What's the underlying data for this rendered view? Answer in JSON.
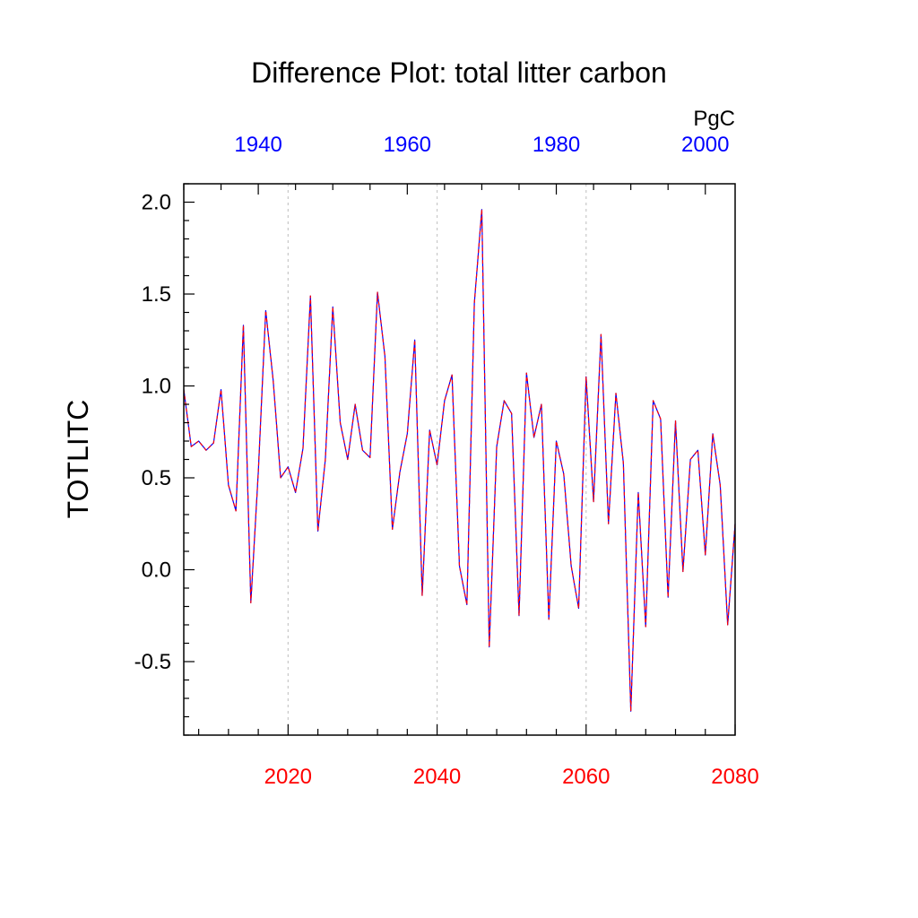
{
  "chart_data": {
    "type": "line",
    "title": "Difference Plot: total litter carbon",
    "units": "PgC",
    "ylabel": "TOTLITC",
    "ylim": [
      -0.9,
      2.1
    ],
    "yticks": [
      -0.5,
      0.0,
      0.5,
      1.0,
      1.5,
      2.0
    ],
    "ytick_labels": [
      "-0.5",
      "0.0",
      "0.5",
      "1.0",
      "1.5",
      "2.0"
    ],
    "bottom_axis": {
      "color": "#ff0000",
      "range": [
        2006,
        2080
      ],
      "ticks": [
        2020,
        2040,
        2060,
        2080
      ],
      "tick_labels": [
        "2020",
        "2040",
        "2060",
        "2080"
      ]
    },
    "top_axis": {
      "color": "#0000ff",
      "range": [
        1930,
        2004
      ],
      "ticks": [
        1940,
        1960,
        1980,
        2000
      ],
      "tick_labels": [
        "1940",
        "1960",
        "1980",
        "2000"
      ]
    },
    "grid": "vertical dashed at major ticks",
    "series": [
      {
        "color": "#0000ff",
        "style": "solid",
        "x": [
          2006,
          2007,
          2008,
          2009,
          2010,
          2011,
          2012,
          2013,
          2014,
          2015,
          2016,
          2017,
          2018,
          2019,
          2020,
          2021,
          2022,
          2023,
          2024,
          2025,
          2026,
          2027,
          2028,
          2029,
          2030,
          2031,
          2032,
          2033,
          2034,
          2035,
          2036,
          2037,
          2038,
          2039,
          2040,
          2041,
          2042,
          2043,
          2044,
          2045,
          2046,
          2047,
          2048,
          2049,
          2050,
          2051,
          2052,
          2053,
          2054,
          2055,
          2056,
          2057,
          2058,
          2059,
          2060,
          2061,
          2062,
          2063,
          2064,
          2065,
          2066,
          2067,
          2068,
          2069,
          2070,
          2071,
          2072,
          2073,
          2074,
          2075,
          2076,
          2077,
          2078,
          2079,
          2080
        ],
        "values": [
          0.98,
          0.67,
          0.7,
          0.65,
          0.69,
          0.98,
          0.46,
          0.32,
          1.33,
          -0.18,
          0.53,
          1.41,
          1.03,
          0.5,
          0.56,
          0.42,
          0.66,
          1.49,
          0.21,
          0.6,
          1.43,
          0.8,
          0.6,
          0.9,
          0.65,
          0.61,
          1.51,
          1.16,
          0.22,
          0.53,
          0.74,
          1.25,
          -0.14,
          0.76,
          0.57,
          0.92,
          1.06,
          0.02,
          -0.19,
          1.45,
          1.96,
          -0.42,
          0.67,
          0.92,
          0.85,
          -0.25,
          1.07,
          0.72,
          0.9,
          -0.27,
          0.7,
          0.52,
          0.02,
          -0.21,
          1.05,
          0.37,
          1.28,
          0.25,
          0.96,
          0.58,
          -0.77,
          0.42,
          -0.31,
          0.92,
          0.82,
          -0.15,
          0.81,
          -0.01,
          0.6,
          0.65,
          0.08,
          0.74,
          0.46,
          -0.3,
          0.25
        ]
      },
      {
        "color": "#ff0000",
        "style": "dashed",
        "x": [
          2006,
          2007,
          2008,
          2009,
          2010,
          2011,
          2012,
          2013,
          2014,
          2015,
          2016,
          2017,
          2018,
          2019,
          2020,
          2021,
          2022,
          2023,
          2024,
          2025,
          2026,
          2027,
          2028,
          2029,
          2030,
          2031,
          2032,
          2033,
          2034,
          2035,
          2036,
          2037,
          2038,
          2039,
          2040,
          2041,
          2042,
          2043,
          2044,
          2045,
          2046,
          2047,
          2048,
          2049,
          2050,
          2051,
          2052,
          2053,
          2054,
          2055,
          2056,
          2057,
          2058,
          2059,
          2060,
          2061,
          2062,
          2063,
          2064,
          2065,
          2066,
          2067,
          2068,
          2069,
          2070,
          2071,
          2072,
          2073,
          2074,
          2075,
          2076,
          2077,
          2078,
          2079,
          2080
        ],
        "values": [
          0.98,
          0.67,
          0.7,
          0.65,
          0.69,
          0.98,
          0.46,
          0.32,
          1.33,
          -0.18,
          0.53,
          1.41,
          1.03,
          0.5,
          0.56,
          0.42,
          0.66,
          1.49,
          0.21,
          0.6,
          1.43,
          0.8,
          0.6,
          0.9,
          0.65,
          0.61,
          1.51,
          1.16,
          0.22,
          0.53,
          0.74,
          1.25,
          -0.14,
          0.76,
          0.57,
          0.92,
          1.06,
          0.02,
          -0.19,
          1.45,
          1.96,
          -0.42,
          0.67,
          0.92,
          0.85,
          -0.25,
          1.07,
          0.72,
          0.9,
          -0.27,
          0.7,
          0.52,
          0.02,
          -0.21,
          1.05,
          0.37,
          1.28,
          0.25,
          0.96,
          0.58,
          -0.77,
          0.42,
          -0.31,
          0.92,
          0.82,
          -0.15,
          0.81,
          -0.01,
          0.6,
          0.65,
          0.08,
          0.74,
          0.46,
          -0.3,
          0.25
        ]
      }
    ]
  }
}
